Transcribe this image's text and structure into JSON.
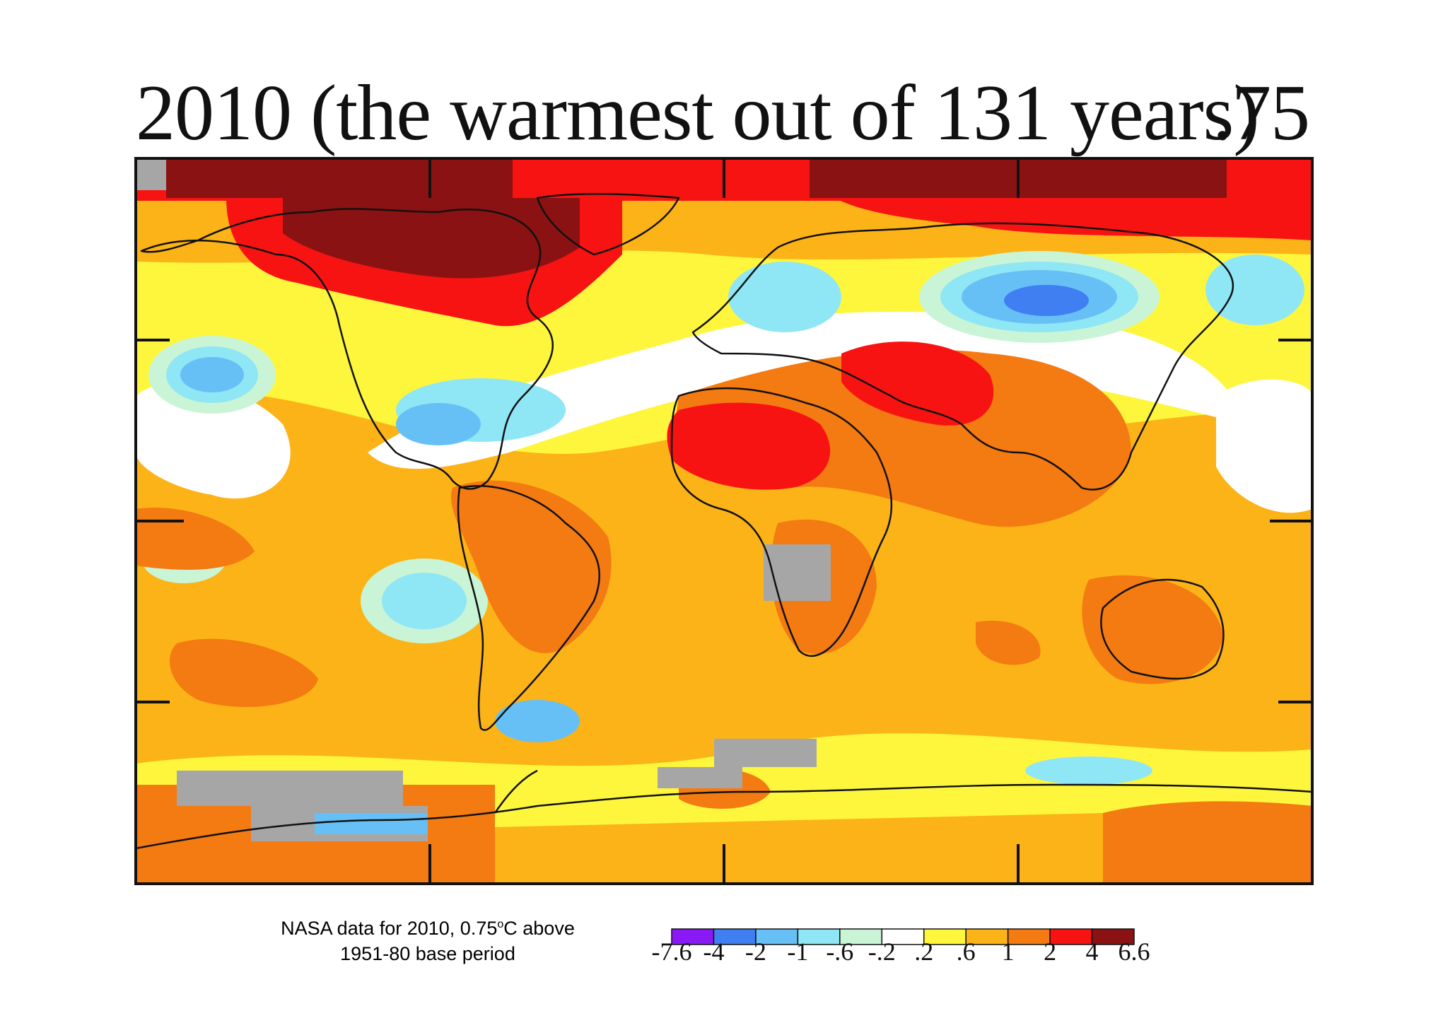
{
  "title": "2010 (the warmest out of 131 years)",
  "global_value": ".75",
  "caption": {
    "line1_prefix": "NASA data for 2010, 0.75",
    "line1_superscript": "o",
    "line1_suffix": "C above",
    "line2": "1951-80 base period"
  },
  "legend": {
    "colors": [
      "#8a1af5",
      "#3f7ff2",
      "#66c0f5",
      "#8fe6f5",
      "#c9f5d6",
      "#ffffff",
      "#fdf63a",
      "#fcb317",
      "#f47a12",
      "#f81313",
      "#8b1212"
    ],
    "labels": [
      "-7.6",
      "-4",
      "-2",
      "-1",
      "-.6",
      "-.2",
      ".2",
      ".6",
      "1",
      "2",
      "4",
      "6.6"
    ]
  },
  "map_colors": {
    "no_data": "#a6a6a6",
    "ocean_base": "#fef63d",
    "frame": "#111111",
    "coast": "#111111"
  }
}
